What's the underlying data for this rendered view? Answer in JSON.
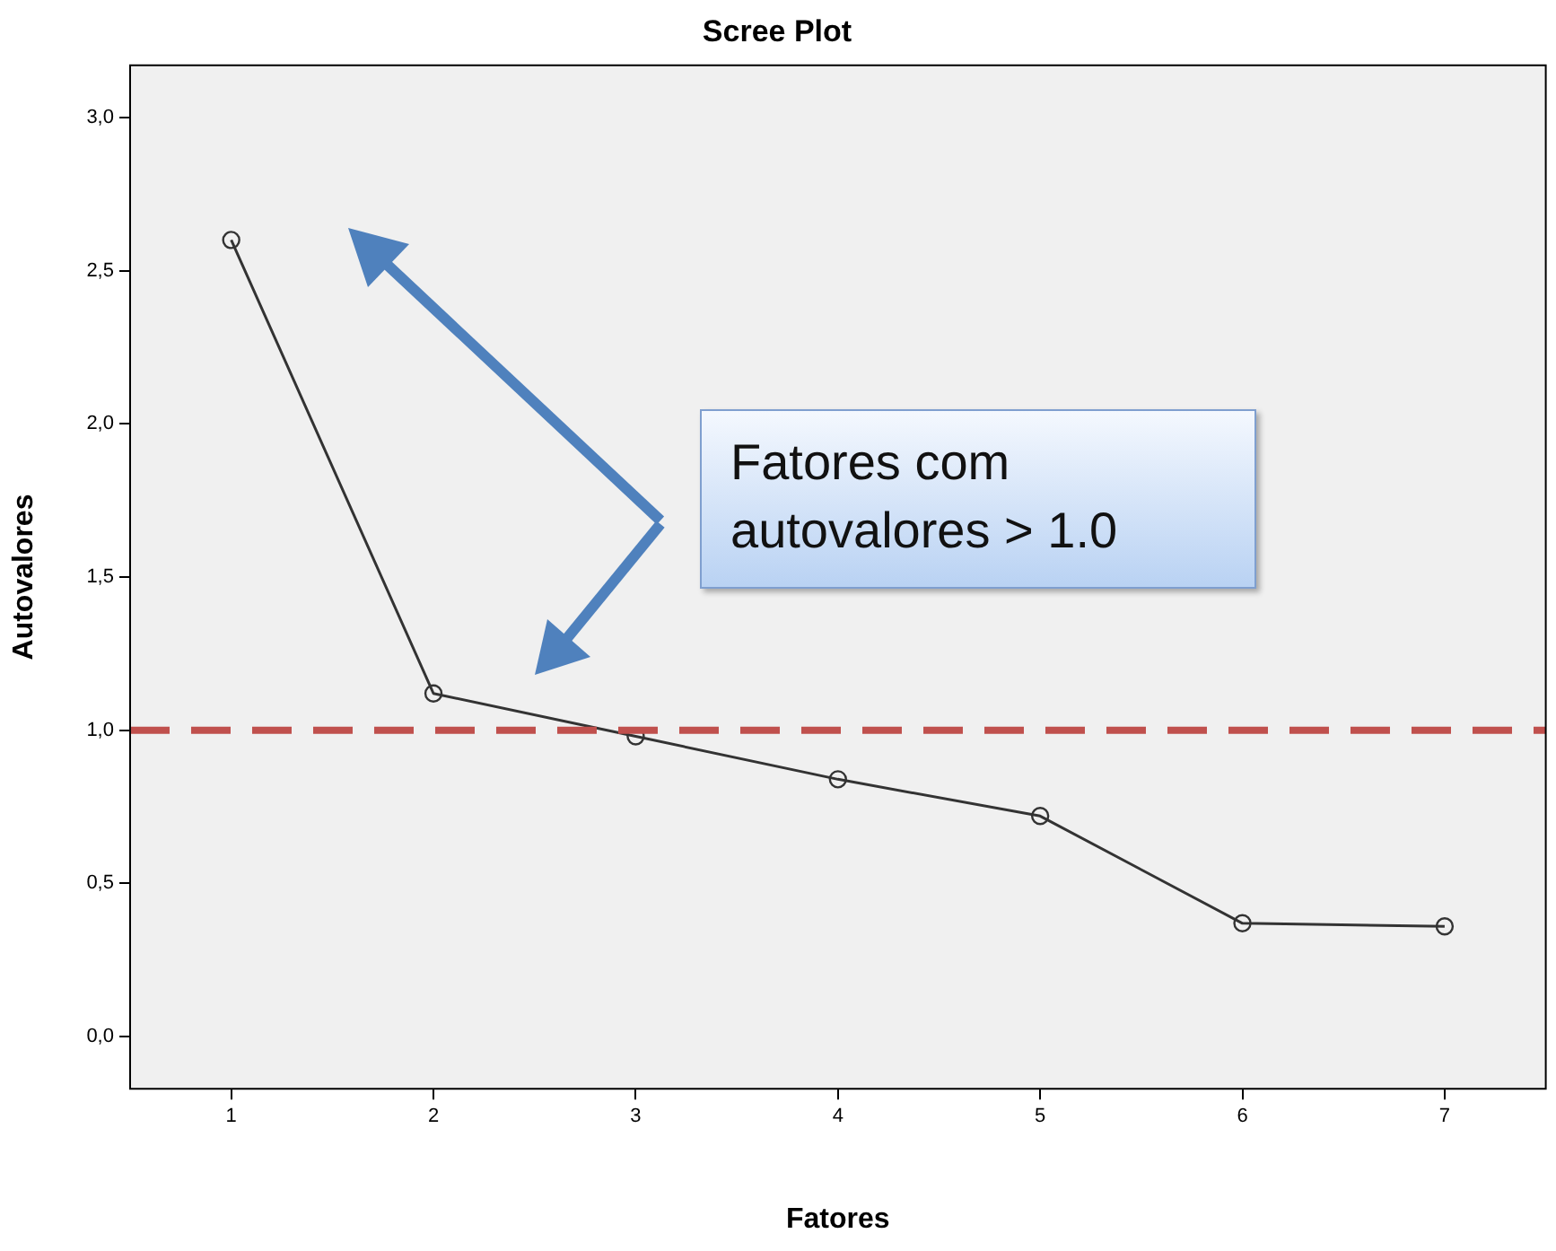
{
  "chart_data": {
    "type": "line",
    "title": "Scree Plot",
    "xlabel": "Fatores",
    "ylabel": "Autovalores",
    "categories": [
      "1",
      "2",
      "3",
      "4",
      "5",
      "6",
      "7"
    ],
    "series": [
      {
        "color": "#333333",
        "values": [
          2.6,
          1.12,
          0.98,
          0.84,
          0.72,
          0.37,
          0.36
        ]
      }
    ],
    "ylim": [
      -0.17,
      3.17
    ],
    "yticks": [
      {
        "value": 0,
        "label": "0,0"
      },
      {
        "value": 0.5,
        "label": "0,5"
      },
      {
        "value": 1,
        "label": "1,0"
      },
      {
        "value": 1.5,
        "label": "1,5"
      },
      {
        "value": 2,
        "label": "2,0"
      },
      {
        "value": 2.5,
        "label": "2,5"
      },
      {
        "value": 3,
        "label": "3,0"
      }
    ],
    "ref_lines": [
      {
        "axis": "y",
        "value": 1,
        "color": "#c0504d",
        "line_style": "dashed"
      }
    ],
    "annotations": [
      "Fatores com autovalores > 1.0"
    ],
    "marker": "circle",
    "line_style": "solid",
    "grid": false,
    "legend": false
  }
}
